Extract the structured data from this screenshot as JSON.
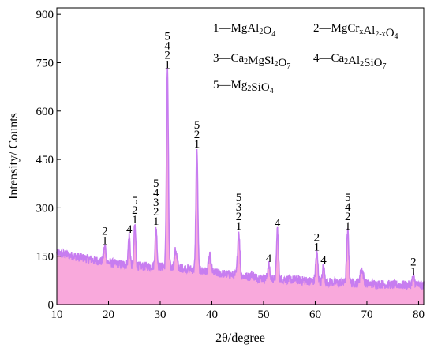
{
  "chart_data": {
    "type": "area",
    "xlabel": "2θ/degree",
    "ylabel": "Intensity/ Counts",
    "xlim": [
      10,
      81
    ],
    "ylim": [
      0,
      920
    ],
    "x_ticks": [
      "10",
      "20",
      "30",
      "40",
      "50",
      "60",
      "70",
      "80"
    ],
    "y_ticks": [
      "0",
      "150",
      "300",
      "450",
      "600",
      "750",
      "900"
    ],
    "grid": false,
    "colors": {
      "line": "#c77df0",
      "fill": "#f9a9dc"
    },
    "legend": [
      {
        "key": "1",
        "parts": [
          [
            "1—MgAl",
            ""
          ],
          [
            "2",
            "sub"
          ],
          [
            "O",
            ""
          ],
          [
            "4",
            "sub"
          ]
        ]
      },
      {
        "key": "2",
        "parts": [
          [
            "2—MgCr",
            ""
          ],
          [
            "x",
            "sub"
          ],
          [
            "Al",
            ""
          ],
          [
            "2-x",
            "sub"
          ],
          [
            "O",
            ""
          ],
          [
            "4",
            "sub"
          ]
        ]
      },
      {
        "key": "3",
        "parts": [
          [
            "3—Ca",
            ""
          ],
          [
            "2",
            "sub"
          ],
          [
            "MgSi",
            ""
          ],
          [
            "2",
            "sub"
          ],
          [
            "O",
            ""
          ],
          [
            "7",
            "sub"
          ]
        ]
      },
      {
        "key": "4",
        "parts": [
          [
            "4—Ca",
            ""
          ],
          [
            "2",
            "sub"
          ],
          [
            "Al",
            ""
          ],
          [
            "2",
            "sub"
          ],
          [
            "SiO",
            ""
          ],
          [
            "7",
            "sub"
          ]
        ]
      },
      {
        "key": "5",
        "parts": [
          [
            "5—Mg",
            ""
          ],
          [
            "2",
            "sub"
          ],
          [
            "SiO",
            ""
          ],
          [
            "4",
            "sub"
          ]
        ]
      }
    ],
    "background": {
      "x": [
        10,
        15,
        20,
        25,
        30,
        35,
        40,
        45,
        50,
        55,
        60,
        65,
        70,
        75,
        81
      ],
      "y": [
        160,
        145,
        130,
        120,
        118,
        112,
        100,
        90,
        82,
        78,
        72,
        68,
        65,
        62,
        60
      ]
    },
    "peaks": [
      {
        "x": 19.3,
        "height": 180,
        "width": 0.35,
        "labels": [
          "2",
          "1"
        ]
      },
      {
        "x": 24.0,
        "height": 215,
        "width": 0.3,
        "labels": [
          "4"
        ]
      },
      {
        "x": 25.1,
        "height": 245,
        "width": 0.3,
        "labels": [
          "5",
          "2",
          "1"
        ]
      },
      {
        "x": 29.2,
        "height": 240,
        "width": 0.3,
        "labels": [
          "5",
          "4",
          "3",
          "2",
          "1"
        ]
      },
      {
        "x": 31.4,
        "height": 725,
        "width": 0.3,
        "labels": [
          "5",
          "4",
          "2",
          "1"
        ]
      },
      {
        "x": 33.0,
        "height": 170,
        "width": 0.4,
        "labels": []
      },
      {
        "x": 37.1,
        "height": 480,
        "width": 0.3,
        "labels": [
          "5",
          "2",
          "1"
        ]
      },
      {
        "x": 39.6,
        "height": 150,
        "width": 0.4,
        "labels": []
      },
      {
        "x": 45.2,
        "height": 225,
        "width": 0.35,
        "labels": [
          "5",
          "3",
          "2",
          "1"
        ]
      },
      {
        "x": 47.8,
        "height": 95,
        "width": 0.4,
        "labels": []
      },
      {
        "x": 51.0,
        "height": 125,
        "width": 0.3,
        "labels": [
          "4"
        ]
      },
      {
        "x": 52.7,
        "height": 235,
        "width": 0.3,
        "labels": [
          "4"
        ]
      },
      {
        "x": 60.3,
        "height": 160,
        "width": 0.35,
        "labels": [
          "2",
          "1"
        ]
      },
      {
        "x": 61.6,
        "height": 120,
        "width": 0.3,
        "labels": [
          "4"
        ]
      },
      {
        "x": 66.3,
        "height": 225,
        "width": 0.35,
        "labels": [
          "5",
          "4",
          "2",
          "1"
        ]
      },
      {
        "x": 69.0,
        "height": 110,
        "width": 0.5,
        "labels": []
      },
      {
        "x": 79.0,
        "height": 85,
        "width": 0.4,
        "labels": [
          "2",
          "1"
        ]
      }
    ]
  }
}
